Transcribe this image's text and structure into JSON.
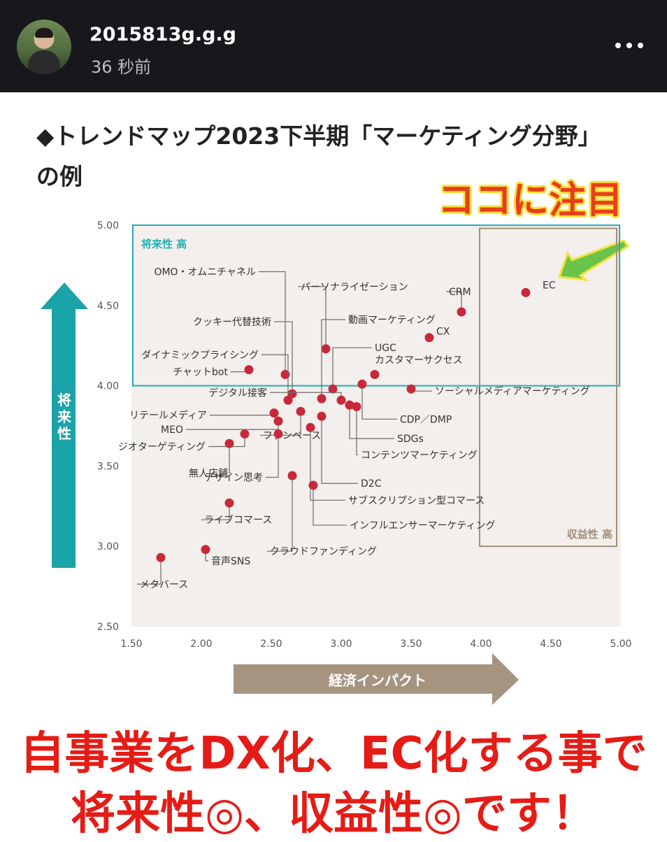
{
  "header": {
    "username": "2015813g.g.g",
    "time_ago": "36 秒前"
  },
  "post_title": "◆トレンドマップ2023下半期「マーケティング分野」の例",
  "callout_text": "ココに注目",
  "overlay_text": {
    "line1": "自事業をDX化、EC化する事で",
    "line2": "将来性◎、収益性◎です！"
  },
  "colors": {
    "point": "#c8283a",
    "future_box": "#22b0b5",
    "revenue_box": "#a48e78",
    "y_arrow": "#1aa3a8",
    "x_arrow": "#a69481",
    "plot_bg": "#f2efec",
    "callout_text": "#ea3d1b",
    "callout_outline": "#f4e23a",
    "callout_arrow": "#6ac44a",
    "overlay_text": "#e51c16"
  },
  "chart_data": {
    "type": "scatter",
    "ylabel": "将来性",
    "xlabel": "経済インパクト",
    "xlim": [
      1.5,
      5.0
    ],
    "ylim": [
      2.5,
      5.0
    ],
    "x_ticks": [
      "1.50",
      "2.00",
      "2.50",
      "3.00",
      "3.50",
      "4.00",
      "4.50",
      "5.00"
    ],
    "y_ticks": [
      "2.50",
      "3.00",
      "3.50",
      "4.00",
      "4.50",
      "5.00"
    ],
    "grid": false,
    "regions": [
      {
        "label": "将来性 高",
        "x": [
          1.5,
          5.0
        ],
        "y": [
          4.0,
          5.0
        ]
      },
      {
        "label": "収益性 高",
        "x": [
          4.0,
          5.0
        ],
        "y": [
          3.0,
          4.98
        ]
      }
    ],
    "points": [
      {
        "label": "EC",
        "x": 4.32,
        "y": 4.58
      },
      {
        "label": "CRM",
        "x": 3.86,
        "y": 4.46
      },
      {
        "label": "CX",
        "x": 3.63,
        "y": 4.3
      },
      {
        "label": "パーソナライゼーション",
        "x": 2.89,
        "y": 4.23
      },
      {
        "label": "UGC",
        "x": 2.94,
        "y": 3.98
      },
      {
        "label": "カスタマーサクセス",
        "x": 3.24,
        "y": 4.07
      },
      {
        "label": "ソーシャルメディアマーケティング",
        "x": 3.5,
        "y": 3.98
      },
      {
        "label": "動画マーケティング",
        "x": 2.86,
        "y": 3.92
      },
      {
        "label": "OMO・オムニチャネル",
        "x": 2.6,
        "y": 4.07
      },
      {
        "label": "クッキー代替技術",
        "x": 2.65,
        "y": 3.95
      },
      {
        "label": "ダイナミックプライシング",
        "x": 2.62,
        "y": 3.91
      },
      {
        "label": "チャットbot",
        "x": 2.34,
        "y": 4.1
      },
      {
        "label": "CDP／DMP",
        "x": 3.15,
        "y": 4.01
      },
      {
        "label": "SDGs",
        "x": 3.06,
        "y": 3.88
      },
      {
        "label": "コンテンツマーケティング",
        "x": 3.11,
        "y": 3.87
      },
      {
        "label": "D2C",
        "x": 2.86,
        "y": 3.81
      },
      {
        "label": "デジタル接客",
        "x": 3.0,
        "y": 3.91
      },
      {
        "label": "リテールメディア",
        "x": 2.52,
        "y": 3.83
      },
      {
        "label": "MEO",
        "x": 2.55,
        "y": 3.78
      },
      {
        "label": "ジオターゲティング",
        "x": 2.31,
        "y": 3.7
      },
      {
        "label": "無人店舗",
        "x": 2.2,
        "y": 3.64
      },
      {
        "label": "ファンベース",
        "x": 2.71,
        "y": 3.84
      },
      {
        "label": "デザイン思考",
        "x": 2.55,
        "y": 3.7
      },
      {
        "label": "サブスクリプション型コマース",
        "x": 2.78,
        "y": 3.74
      },
      {
        "label": "ライブコマース",
        "x": 2.2,
        "y": 3.27
      },
      {
        "label": "クラウドファンディング",
        "x": 2.65,
        "y": 3.44
      },
      {
        "label": "インフルエンサーマーケティング",
        "x": 2.8,
        "y": 3.38
      },
      {
        "label": "音声SNS",
        "x": 2.03,
        "y": 2.98
      },
      {
        "label": "メタバース",
        "x": 1.71,
        "y": 2.93
      }
    ]
  }
}
